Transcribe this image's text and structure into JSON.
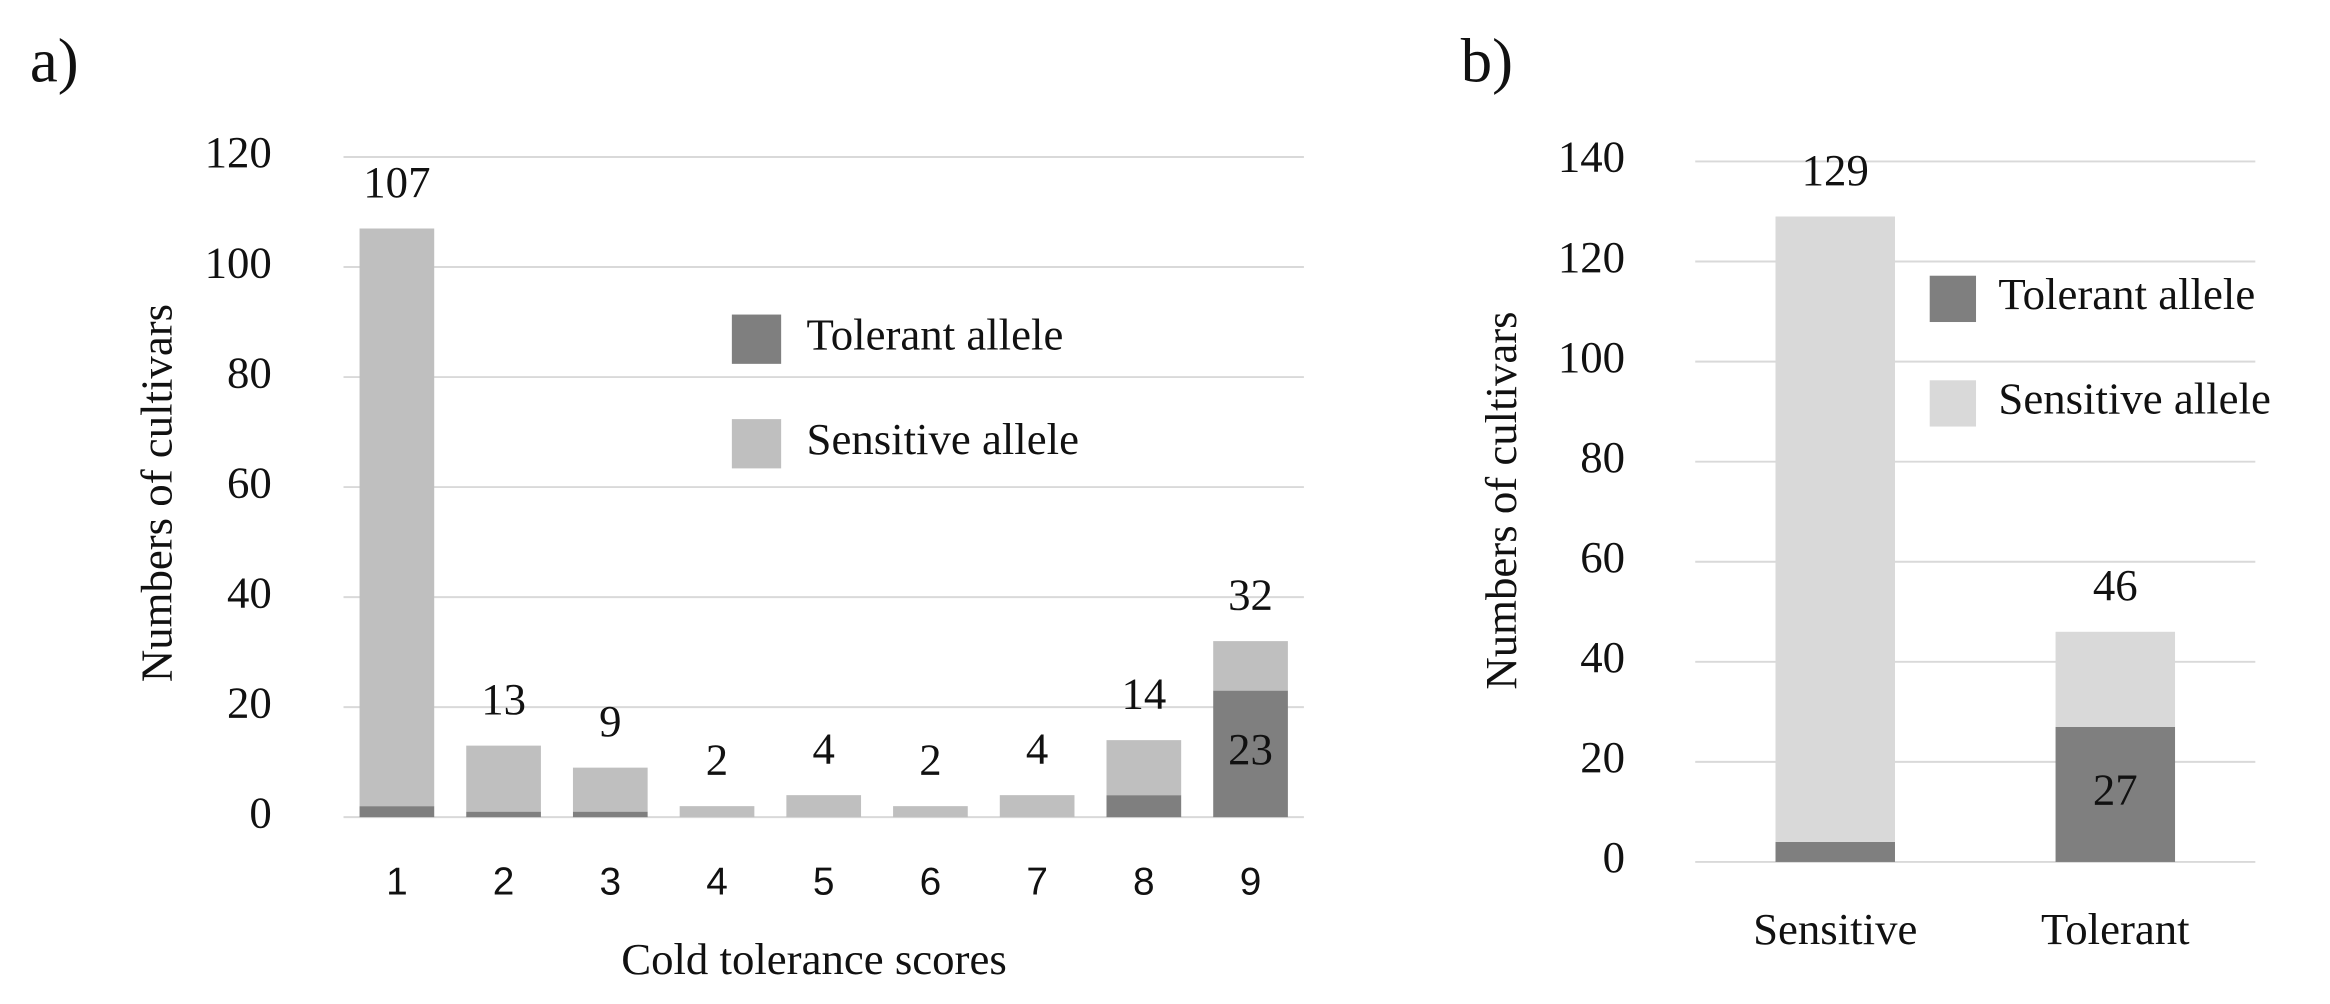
{
  "chart_data": [
    {
      "type": "stacked_bar",
      "panel_label": "a)",
      "xlabel": "Cold tolerance scores",
      "ylabel": "Numbers of cultivars",
      "categories": [
        "1",
        "2",
        "3",
        "4",
        "5",
        "6",
        "7",
        "8",
        "9"
      ],
      "series": [
        {
          "name": "Tolerant allele",
          "color": "#7f7f7f",
          "values": [
            2,
            1,
            1,
            0,
            0,
            0,
            0,
            4,
            23
          ]
        },
        {
          "name": "Sensitive allele",
          "color": "#bfbfbf",
          "values": [
            105,
            12,
            8,
            2,
            4,
            2,
            4,
            10,
            9
          ]
        }
      ],
      "totals": [
        107,
        13,
        9,
        2,
        4,
        2,
        4,
        14,
        32
      ],
      "ylim": [
        0,
        120
      ],
      "yticks": [
        0,
        20,
        40,
        60,
        80,
        100,
        120
      ],
      "grid": true,
      "legend": "center"
    },
    {
      "type": "stacked_bar",
      "panel_label": "b)",
      "ylabel": "Numbers of cultivars",
      "categories": [
        "Sensitive",
        "Tolerant"
      ],
      "series": [
        {
          "name": "Tolerant allele",
          "color": "#7f7f7f",
          "values": [
            4,
            27
          ]
        },
        {
          "name": "Sensitive allele",
          "color": "#d9d9d9",
          "values": [
            125,
            19
          ]
        }
      ],
      "totals": [
        129,
        46
      ],
      "ylim": [
        0,
        140
      ],
      "yticks": [
        0,
        20,
        40,
        60,
        80,
        100,
        120,
        140
      ],
      "grid": true,
      "legend": "right"
    }
  ]
}
